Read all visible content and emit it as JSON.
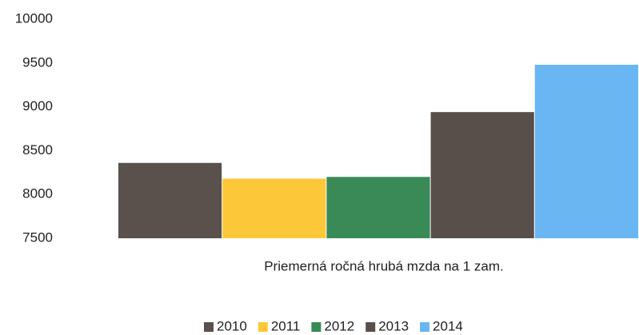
{
  "chart_data": {
    "type": "bar",
    "categories": [
      "Priemerná ročná hrubá mzda na 1 zam."
    ],
    "series": [
      {
        "name": "2010",
        "color": "#5a514c",
        "values": [
          8360
        ]
      },
      {
        "name": "2011",
        "color": "#fcc83a",
        "values": [
          8180
        ]
      },
      {
        "name": "2012",
        "color": "#3a8a58",
        "values": [
          8200
        ]
      },
      {
        "name": "2013",
        "color": "#584f4a",
        "values": [
          8940
        ]
      },
      {
        "name": "2014",
        "color": "#6ab6f2",
        "values": [
          9480
        ]
      }
    ],
    "ylim": [
      7500,
      10000
    ],
    "yticks": [
      7500,
      8000,
      8500,
      9000,
      9500,
      10000
    ],
    "grid": false,
    "legend": "bottom"
  }
}
